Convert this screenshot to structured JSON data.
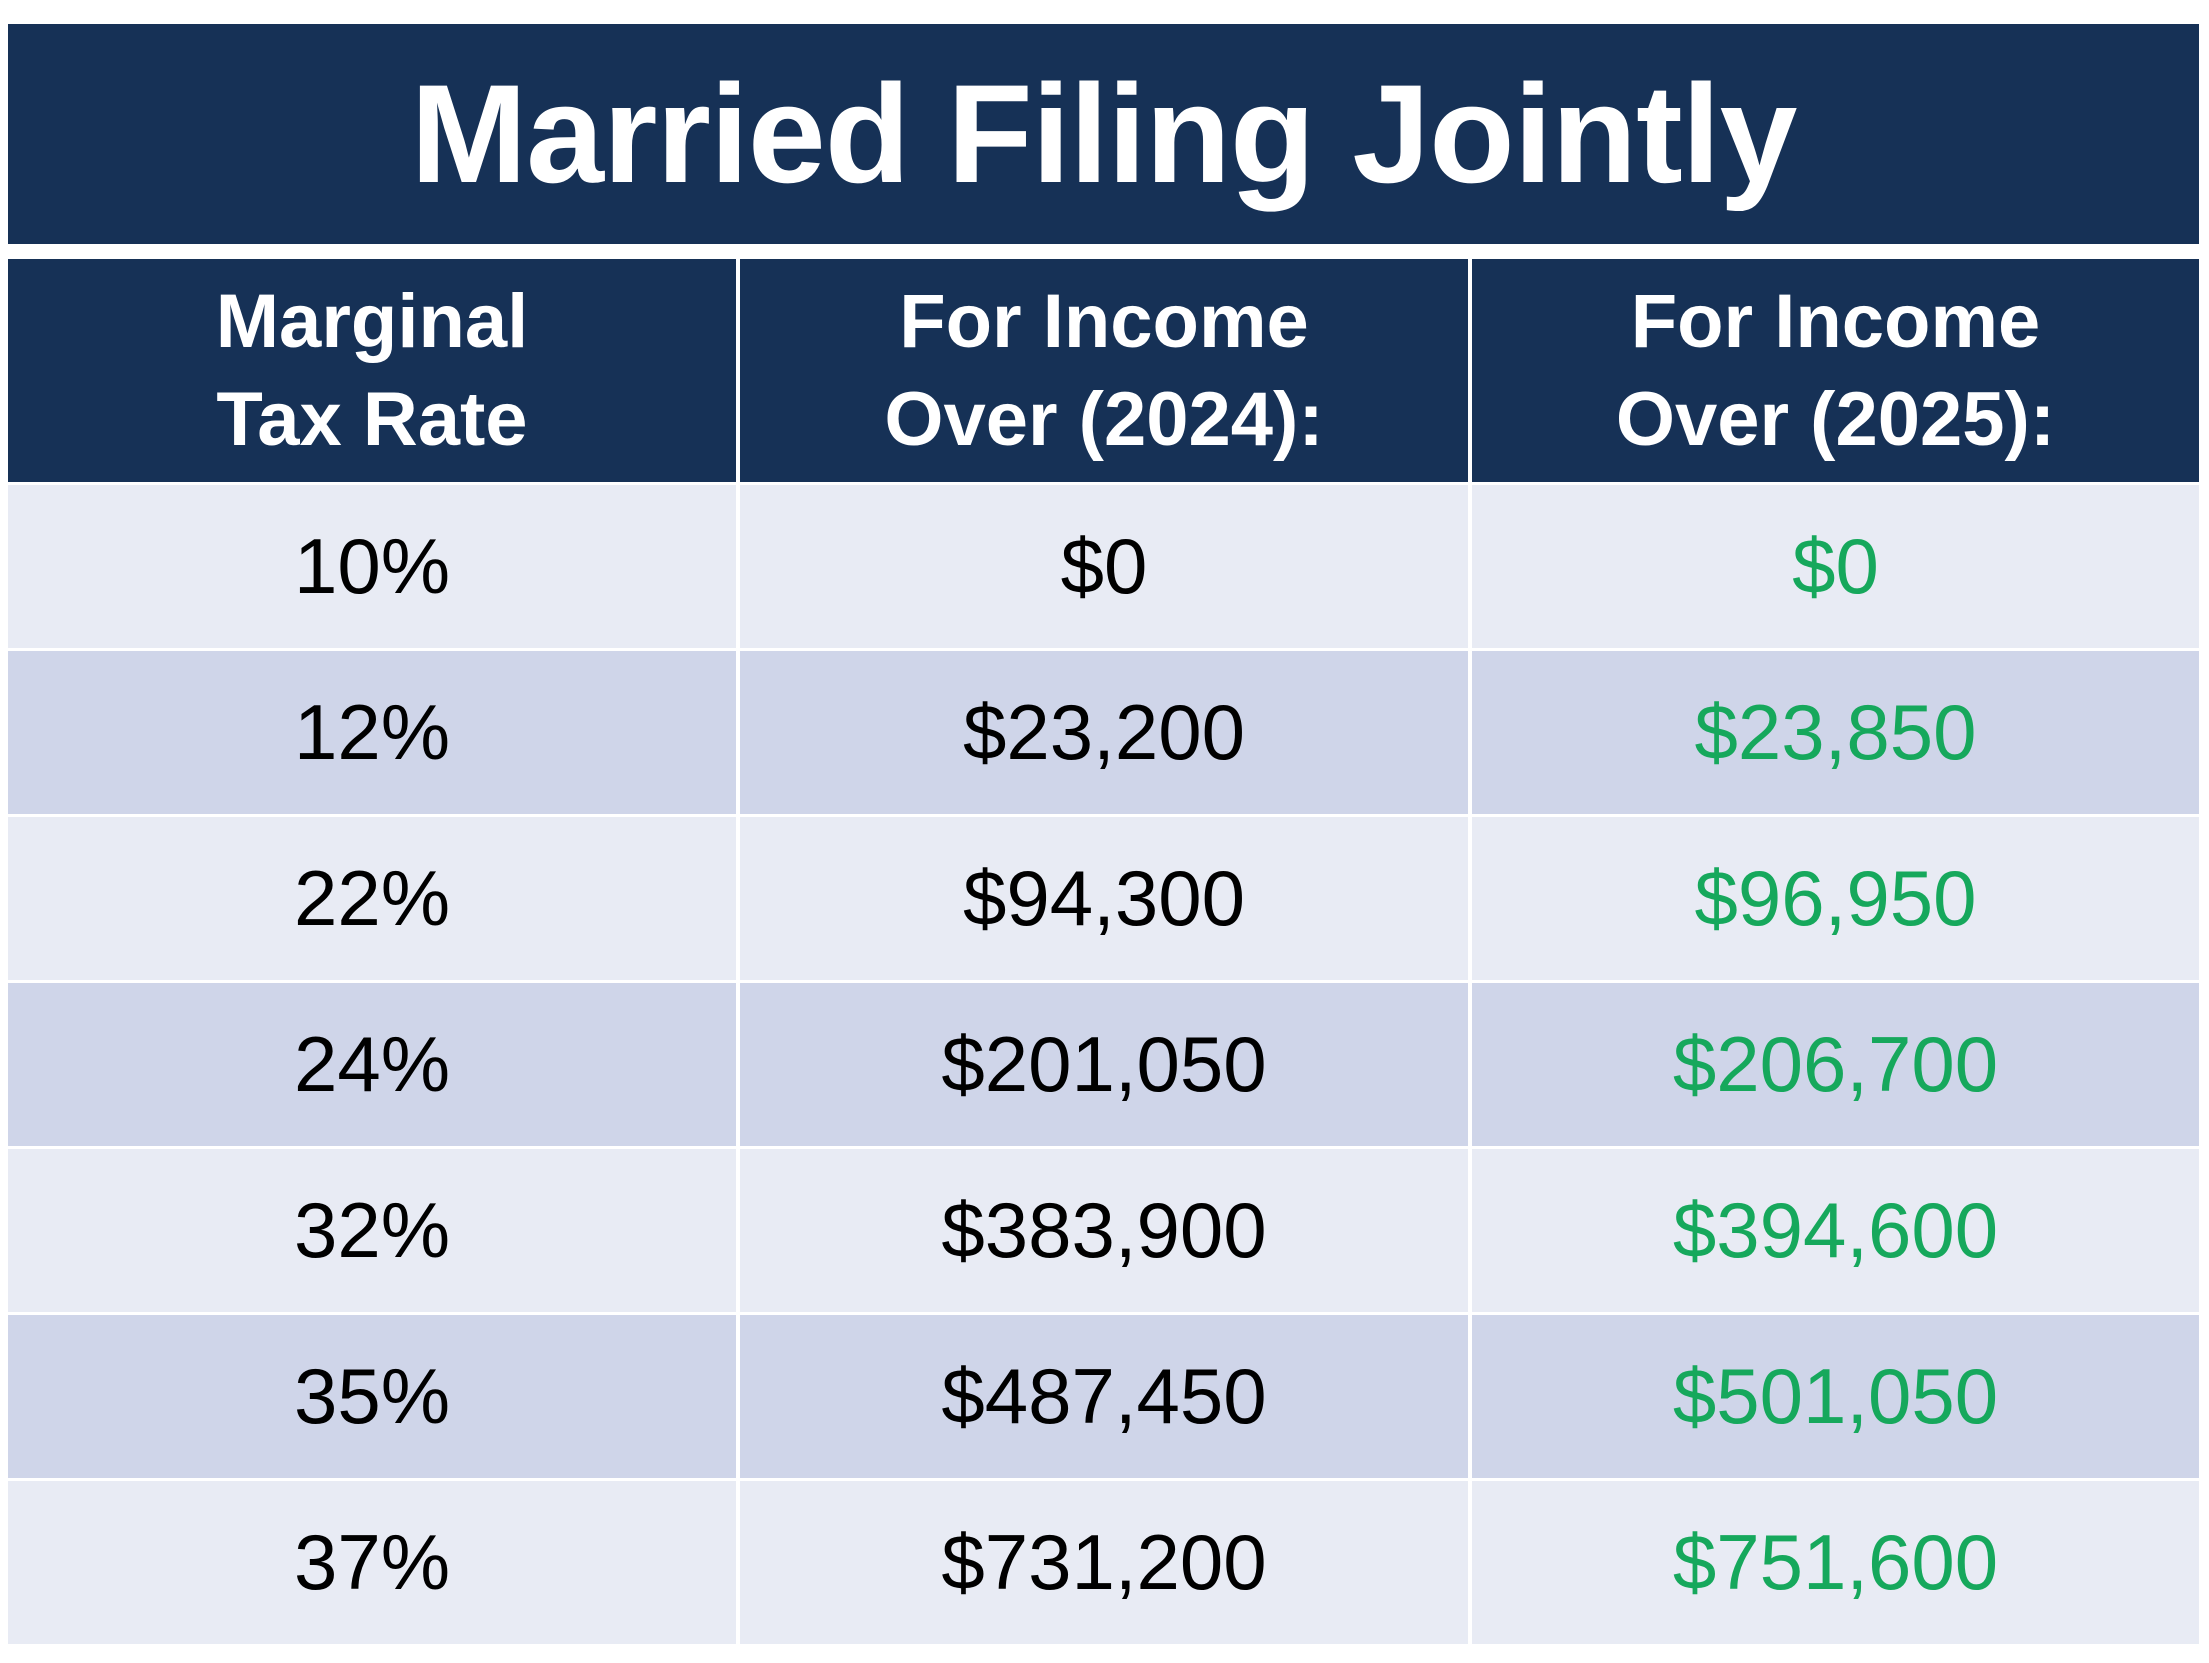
{
  "title": "Married Filing Jointly",
  "colors": {
    "header_bg": "#163156",
    "row_light": "#e8ebf4",
    "row_dark": "#cfd5e9",
    "highlight_2025": "#16a85c"
  },
  "headers": [
    {
      "line1": "Marginal",
      "line2": "Tax Rate"
    },
    {
      "line1": "For Income",
      "line2": "Over (2024):"
    },
    {
      "line1": "For Income",
      "line2": "Over (2025):"
    }
  ],
  "rows": [
    {
      "rate": "10%",
      "y2024": "$0",
      "y2025": "$0"
    },
    {
      "rate": "12%",
      "y2024": "$23,200",
      "y2025": "$23,850"
    },
    {
      "rate": "22%",
      "y2024": "$94,300",
      "y2025": "$96,950"
    },
    {
      "rate": "24%",
      "y2024": "$201,050",
      "y2025": "$206,700"
    },
    {
      "rate": "32%",
      "y2024": "$383,900",
      "y2025": "$394,600"
    },
    {
      "rate": "35%",
      "y2024": "$487,450",
      "y2025": "$501,050"
    },
    {
      "rate": "37%",
      "y2024": "$731,200",
      "y2025": "$751,600"
    }
  ]
}
